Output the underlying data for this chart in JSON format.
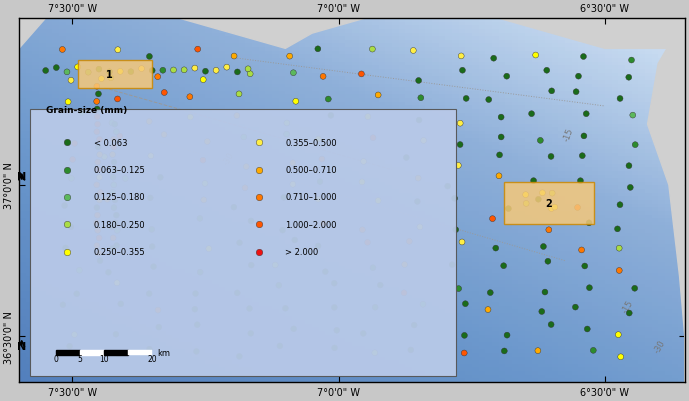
{
  "title": "",
  "lon_min": -7.6,
  "lon_max": -6.35,
  "lat_min": 36.35,
  "lat_max": 37.55,
  "x_ticks": [
    -7.5,
    -7.0,
    -6.5
  ],
  "x_labels": [
    "7°30'0\" W",
    "7°0'0\" W",
    "6°30'0\" W"
  ],
  "y_ticks": [
    36.5,
    37.0
  ],
  "y_labels": [
    "36°30'0\" N",
    "37°0'0\" N"
  ],
  "ocean_color": "#b8c9e8",
  "land_color": "#d3d3d3",
  "legend_categories": [
    {
      "label": "< 0.063",
      "color": "#1a6b1a"
    },
    {
      "label": "0.063–0.125",
      "color": "#2d8b2d"
    },
    {
      "label": "0.125–0.180",
      "color": "#5cb85c"
    },
    {
      "label": "0.180–0.250",
      "color": "#aadd44"
    },
    {
      "label": "0.250–0.355",
      "color": "#ffff00"
    },
    {
      "label": "0.355–0.500",
      "color": "#ffee44"
    },
    {
      "label": "0.500–0.710",
      "color": "#ffaa00"
    },
    {
      "label": "0.710–1.000",
      "color": "#ff7700"
    },
    {
      "label": "1.000–2.000",
      "color": "#ff5500"
    },
    {
      "label": "> 2.000",
      "color": "#ee1111"
    }
  ],
  "background_color": "#b8c9e8",
  "frame_color": "#555555",
  "grid_color": "#888888"
}
